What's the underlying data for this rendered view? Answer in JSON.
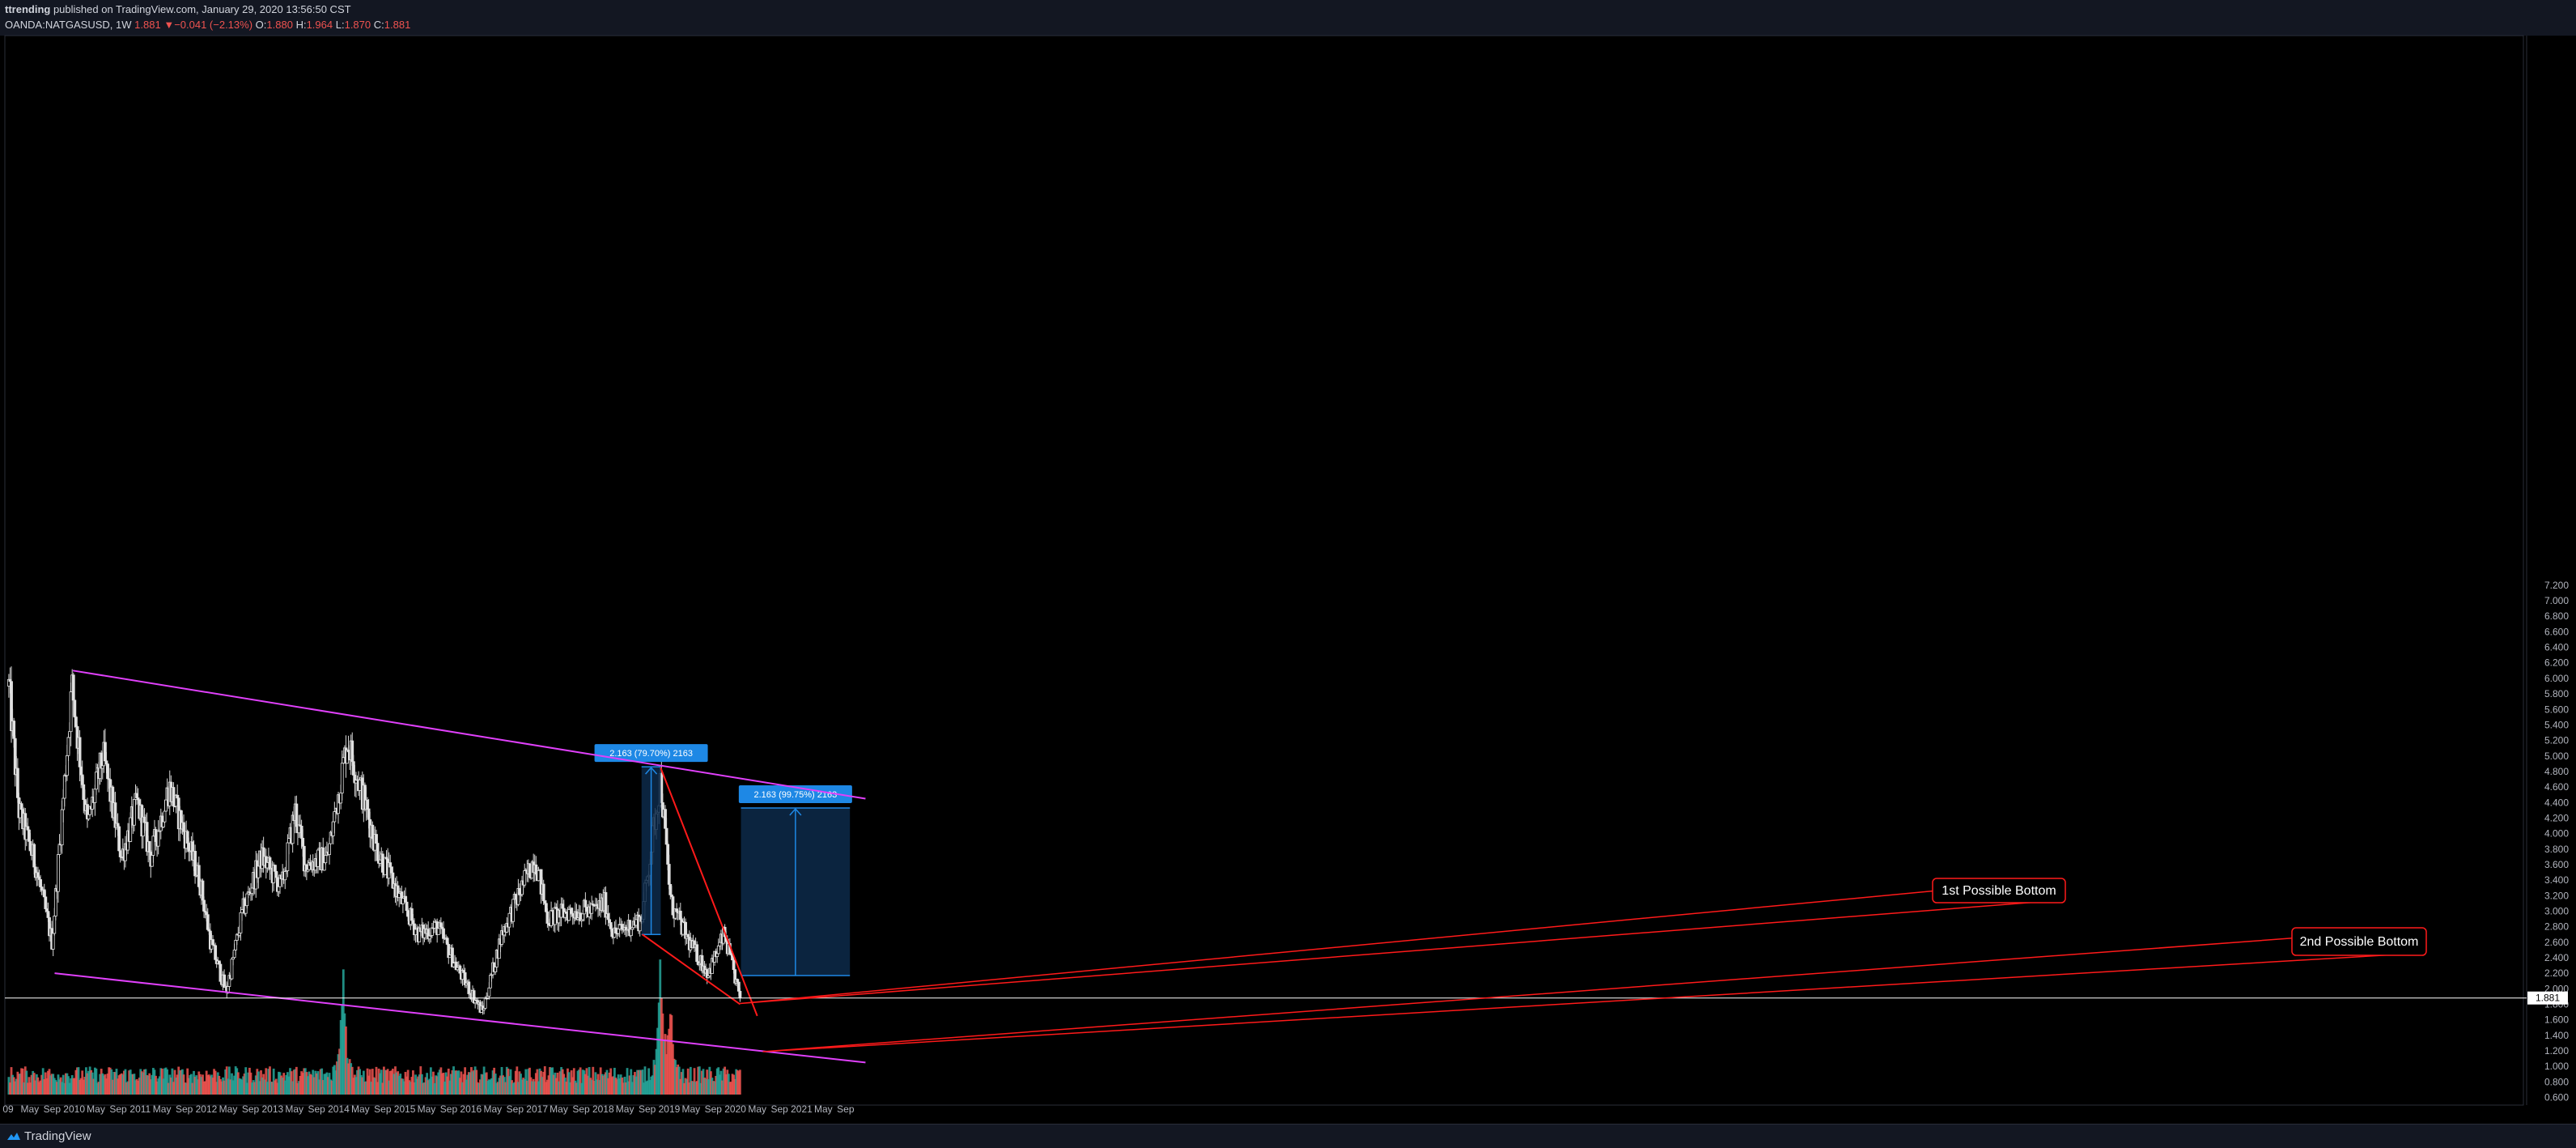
{
  "header": {
    "publisher_user": "ttrending",
    "publisher_rest": " published on TradingView.com, January 29, 2020 13:56:50 CST",
    "symbol": "OANDA:NATGASUSD, 1W",
    "last": "1.881",
    "change": "−0.041 (−2.13%)",
    "o_label": "O:",
    "o": "1.880",
    "h_label": "H:",
    "h": "1.964",
    "l_label": "L:",
    "l": "1.870",
    "c_label": "C:",
    "c": "1.881"
  },
  "footer": {
    "brand": "TradingView"
  },
  "colors": {
    "up": "#e0e0e0",
    "down": "#e0e0e0",
    "vol_up": "#26a69a",
    "vol_down": "#ef5350",
    "channel": "#e040fb",
    "wedge": "#ff1a1a",
    "projection": "#1e88e5",
    "projection_fill": "#0d2a4a",
    "price_line": "#ffffff"
  },
  "chart_data": {
    "type": "candlestick",
    "symbol": "OANDA:NATGASUSD",
    "interval": "1W",
    "ylim": [
      0.6,
      7.2
    ],
    "y_ticks": [
      "0.600",
      "0.800",
      "1.000",
      "1.200",
      "1.400",
      "1.600",
      "1.800",
      "2.000",
      "2.200",
      "2.400",
      "2.600",
      "2.800",
      "3.000",
      "3.200",
      "3.400",
      "3.600",
      "3.800",
      "4.000",
      "4.200",
      "4.400",
      "4.600",
      "4.800",
      "5.000",
      "5.200",
      "5.400",
      "5.600",
      "5.800",
      "6.000",
      "6.200",
      "6.400",
      "6.600",
      "6.800",
      "7.000",
      "7.200"
    ],
    "x_ticks": [
      "09",
      "May",
      "Sep",
      "2010",
      "May",
      "Sep",
      "2011",
      "May",
      "Sep",
      "2012",
      "May",
      "Sep",
      "2013",
      "May",
      "Sep",
      "2014",
      "May",
      "Sep",
      "2015",
      "May",
      "Sep",
      "2016",
      "May",
      "Sep",
      "2017",
      "May",
      "Sep",
      "2018",
      "May",
      "Sep",
      "2019",
      "May",
      "Sep",
      "2020",
      "May",
      "Sep",
      "2021",
      "May",
      "Sep"
    ],
    "last_price": "1.881",
    "close_path": [
      [
        "2009-01-05",
        5.9
      ],
      [
        "2009-03-01",
        4.3
      ],
      [
        "2009-06-01",
        3.6
      ],
      [
        "2009-09-01",
        2.6
      ],
      [
        "2009-12-20",
        5.9
      ],
      [
        "2010-03-15",
        4.1
      ],
      [
        "2010-06-10",
        5.0
      ],
      [
        "2010-09-20",
        3.7
      ],
      [
        "2010-12-15",
        4.4
      ],
      [
        "2011-03-01",
        3.7
      ],
      [
        "2011-06-10",
        4.6
      ],
      [
        "2011-08-20",
        4.1
      ],
      [
        "2011-11-25",
        3.4
      ],
      [
        "2012-01-25",
        2.6
      ],
      [
        "2012-04-20",
        1.95
      ],
      [
        "2012-07-20",
        3.0
      ],
      [
        "2012-11-01",
        3.7
      ],
      [
        "2013-02-20",
        3.3
      ],
      [
        "2013-05-05",
        4.3
      ],
      [
        "2013-07-01",
        3.6
      ],
      [
        "2013-11-01",
        3.7
      ],
      [
        "2014-02-18",
        5.2
      ],
      [
        "2014-05-01",
        4.6
      ],
      [
        "2014-08-01",
        3.8
      ],
      [
        "2014-12-20",
        3.1
      ],
      [
        "2015-03-20",
        2.7
      ],
      [
        "2015-07-01",
        2.8
      ],
      [
        "2015-10-10",
        2.3
      ],
      [
        "2016-03-05",
        1.7
      ],
      [
        "2016-06-20",
        2.7
      ],
      [
        "2016-12-20",
        3.7
      ],
      [
        "2017-03-01",
        2.9
      ],
      [
        "2017-07-01",
        3.0
      ],
      [
        "2017-11-01",
        3.0
      ],
      [
        "2018-01-10",
        3.1
      ],
      [
        "2018-03-01",
        2.7
      ],
      [
        "2018-08-01",
        2.9
      ],
      [
        "2018-11-14",
        4.7
      ],
      [
        "2019-01-10",
        3.1
      ],
      [
        "2019-04-20",
        2.6
      ],
      [
        "2019-08-05",
        2.2
      ],
      [
        "2019-11-01",
        2.7
      ],
      [
        "2020-01-27",
        1.881
      ]
    ],
    "volume_spikes": [
      [
        "2014-01-25",
        1.0
      ],
      [
        "2018-11-14",
        1.0
      ],
      [
        "2019-01-10",
        0.55
      ]
    ],
    "drawings": [
      {
        "type": "channel_top",
        "from": [
          "2009-12-25",
          6.1
        ],
        "to": [
          "2021-12-20",
          4.45
        ]
      },
      {
        "type": "channel_bottom",
        "from": [
          "2009-09-15",
          2.2
        ],
        "to": [
          "2021-12-20",
          1.05
        ]
      },
      {
        "type": "wedge_upper",
        "from": [
          "2018-11-14",
          4.85
        ],
        "to": [
          "2020-05-01",
          1.65
        ]
      },
      {
        "type": "wedge_lower",
        "from": [
          "2018-08-05",
          2.7
        ],
        "to": [
          "2020-01-27",
          1.8
        ]
      },
      {
        "type": "long_position",
        "from_date": "2018-08-01",
        "to_date": "2018-11-15",
        "low": 2.7,
        "high": 4.86,
        "label": "2.163 (79.70%) 2163"
      },
      {
        "type": "long_position",
        "from_date": "2020-02-01",
        "to_date": "2021-09-25",
        "low": 2.17,
        "high": 4.33,
        "label": "2.163 (99.75%) 2163"
      }
    ],
    "annotations": [
      {
        "text": "1st Possible Bottom",
        "at": [
          "2020-01-27",
          1.81
        ]
      },
      {
        "text": "2nd Possible Bottom",
        "at": [
          "2020-06-01",
          1.19
        ]
      }
    ]
  }
}
